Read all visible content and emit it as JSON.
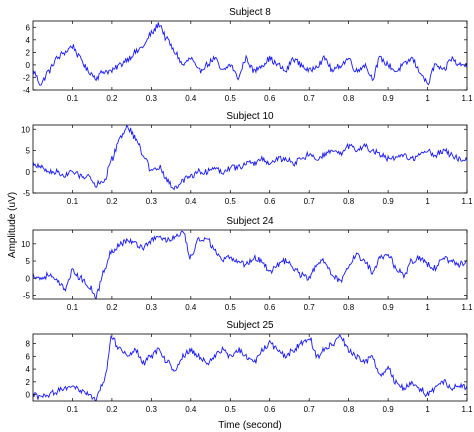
{
  "figure": {
    "ylabel": "Amplitude (uV)",
    "xlabel": "Time (second)"
  },
  "colors": {
    "trace": "#1a1aff",
    "axes": "#000000",
    "background": "#ffffff"
  },
  "chart_data": [
    {
      "type": "line",
      "title": "Subject 8",
      "xlim": [
        0,
        1.1
      ],
      "ylim": [
        -4,
        7
      ],
      "xticks": [
        0.1,
        0.2,
        0.3,
        0.4,
        0.5,
        0.6,
        0.7,
        0.8,
        0.9,
        1,
        1.1
      ],
      "xtick_labels": [
        "0.1",
        "0.2",
        "0.3",
        "0.4",
        "0.5",
        "0.6",
        "0.7",
        "0.8",
        "0.9",
        "1",
        "1.1"
      ],
      "yticks": [
        -4,
        -2,
        0,
        2,
        4,
        6
      ],
      "ytick_labels": [
        "-4",
        "-2",
        "0",
        "2",
        "4",
        "6"
      ],
      "grid": false,
      "series": [
        {
          "x": [
            0,
            0.02,
            0.04,
            0.06,
            0.08,
            0.1,
            0.12,
            0.14,
            0.16,
            0.18,
            0.2,
            0.22,
            0.24,
            0.26,
            0.28,
            0.3,
            0.32,
            0.34,
            0.36,
            0.38,
            0.4,
            0.42,
            0.44,
            0.46,
            0.48,
            0.5,
            0.52,
            0.54,
            0.56,
            0.58,
            0.6,
            0.62,
            0.64,
            0.66,
            0.68,
            0.7,
            0.72,
            0.74,
            0.76,
            0.78,
            0.8,
            0.82,
            0.84,
            0.86,
            0.88,
            0.9,
            0.92,
            0.94,
            0.96,
            0.98,
            1,
            1.02,
            1.04,
            1.06,
            1.08,
            1.1
          ],
          "values": [
            -1,
            -3,
            -1,
            1,
            2,
            3,
            1,
            -1,
            -2,
            -1,
            -1,
            0,
            1,
            2,
            3,
            5,
            6.5,
            4,
            2,
            0,
            1,
            -1,
            0,
            1,
            -1,
            0,
            -2,
            1,
            -1,
            0,
            1,
            0,
            -1,
            1,
            0,
            -1,
            0,
            1,
            -1,
            0,
            1,
            -1,
            0,
            -2,
            1,
            0,
            -1,
            0,
            1,
            -1,
            -3,
            0,
            -1,
            1,
            0,
            0
          ]
        }
      ]
    },
    {
      "type": "line",
      "title": "Subject 10",
      "xlim": [
        0,
        1.1
      ],
      "ylim": [
        -5,
        11
      ],
      "xticks": [
        0.1,
        0.2,
        0.3,
        0.4,
        0.5,
        0.6,
        0.7,
        0.8,
        0.9,
        1,
        1.1
      ],
      "xtick_labels": [
        "0.1",
        "0.2",
        "0.3",
        "0.4",
        "0.5",
        "0.6",
        "0.7",
        "0.8",
        "0.9",
        "1",
        "1.1"
      ],
      "yticks": [
        -5,
        0,
        5,
        10
      ],
      "ytick_labels": [
        "-5",
        "0",
        "5",
        "10"
      ],
      "grid": false,
      "series": [
        {
          "x": [
            0,
            0.02,
            0.04,
            0.06,
            0.08,
            0.1,
            0.12,
            0.14,
            0.16,
            0.18,
            0.2,
            0.22,
            0.24,
            0.26,
            0.28,
            0.3,
            0.32,
            0.34,
            0.36,
            0.38,
            0.4,
            0.42,
            0.44,
            0.46,
            0.48,
            0.5,
            0.52,
            0.54,
            0.56,
            0.58,
            0.6,
            0.62,
            0.64,
            0.66,
            0.68,
            0.7,
            0.72,
            0.74,
            0.76,
            0.78,
            0.8,
            0.82,
            0.84,
            0.86,
            0.88,
            0.9,
            0.92,
            0.94,
            0.96,
            0.98,
            1,
            1.02,
            1.04,
            1.06,
            1.08,
            1.1
          ],
          "values": [
            2,
            1,
            0,
            0,
            -1,
            0,
            -1,
            -1,
            -3,
            -2,
            3,
            8,
            10.5,
            8,
            4,
            0,
            1,
            -2,
            -4,
            -2,
            -1,
            0,
            0,
            1,
            0,
            1,
            1,
            2,
            2,
            3,
            2,
            3,
            3,
            2,
            3,
            4,
            3,
            4,
            5,
            4,
            6,
            5,
            6,
            5,
            4,
            3,
            3,
            4,
            3,
            4,
            5,
            4,
            5,
            4,
            3,
            3
          ]
        }
      ]
    },
    {
      "type": "line",
      "title": "Subject 24",
      "xlim": [
        0,
        1.1
      ],
      "ylim": [
        -6,
        14
      ],
      "xticks": [
        0.1,
        0.2,
        0.3,
        0.4,
        0.5,
        0.6,
        0.7,
        0.8,
        0.9,
        1,
        1.1
      ],
      "xtick_labels": [
        "0.1",
        "0.2",
        "0.3",
        "0.4",
        "0.5",
        "0.6",
        "0.7",
        "0.8",
        "0.9",
        "1",
        "1.1"
      ],
      "yticks": [
        -5,
        0,
        5,
        10
      ],
      "ytick_labels": [
        "-5",
        "0",
        "5",
        "10"
      ],
      "grid": false,
      "series": [
        {
          "x": [
            0,
            0.02,
            0.04,
            0.06,
            0.08,
            0.1,
            0.12,
            0.14,
            0.16,
            0.18,
            0.2,
            0.22,
            0.24,
            0.26,
            0.28,
            0.3,
            0.32,
            0.34,
            0.36,
            0.38,
            0.4,
            0.42,
            0.44,
            0.46,
            0.48,
            0.5,
            0.52,
            0.54,
            0.56,
            0.58,
            0.6,
            0.62,
            0.64,
            0.66,
            0.68,
            0.7,
            0.72,
            0.74,
            0.76,
            0.78,
            0.8,
            0.82,
            0.84,
            0.86,
            0.88,
            0.9,
            0.92,
            0.94,
            0.96,
            0.98,
            1,
            1.02,
            1.04,
            1.06,
            1.08,
            1.1
          ],
          "values": [
            1,
            0,
            1,
            -1,
            -3,
            2,
            0,
            -2,
            -5,
            2,
            8,
            10,
            11,
            10,
            9,
            11,
            12,
            11,
            12,
            13,
            6,
            11,
            12,
            8,
            5,
            6,
            5,
            4,
            6,
            5,
            2,
            4,
            5,
            3,
            1,
            0,
            4,
            5,
            1,
            -1,
            3,
            7,
            5,
            2,
            6,
            7,
            3,
            1,
            5,
            6,
            4,
            3,
            6,
            5,
            4,
            5
          ]
        }
      ]
    },
    {
      "type": "line",
      "title": "Subject 25",
      "xlim": [
        0,
        1.1
      ],
      "ylim": [
        -1,
        9.5
      ],
      "xticks": [
        0.1,
        0.2,
        0.3,
        0.4,
        0.5,
        0.6,
        0.7,
        0.8,
        0.9,
        1,
        1.1
      ],
      "xtick_labels": [
        "0.1",
        "0.2",
        "0.3",
        "0.4",
        "0.5",
        "0.6",
        "0.7",
        "0.8",
        "0.9",
        "1",
        "1.1"
      ],
      "yticks": [
        0,
        2,
        4,
        6,
        8
      ],
      "ytick_labels": [
        "0",
        "2",
        "4",
        "6",
        "8"
      ],
      "grid": false,
      "series": [
        {
          "x": [
            0,
            0.02,
            0.04,
            0.06,
            0.08,
            0.1,
            0.12,
            0.14,
            0.16,
            0.18,
            0.2,
            0.22,
            0.24,
            0.26,
            0.28,
            0.3,
            0.32,
            0.34,
            0.36,
            0.38,
            0.4,
            0.42,
            0.44,
            0.46,
            0.48,
            0.5,
            0.52,
            0.54,
            0.56,
            0.58,
            0.6,
            0.62,
            0.64,
            0.66,
            0.68,
            0.7,
            0.72,
            0.74,
            0.76,
            0.78,
            0.8,
            0.82,
            0.84,
            0.86,
            0.88,
            0.9,
            0.92,
            0.94,
            0.96,
            0.98,
            1,
            1.02,
            1.04,
            1.06,
            1.08,
            1.1
          ],
          "values": [
            0,
            -0.5,
            0,
            0.5,
            1,
            1.5,
            0.5,
            0,
            -0.5,
            2,
            9,
            7,
            6,
            7,
            5,
            6,
            7,
            5,
            4,
            6,
            7,
            6,
            5,
            6,
            7,
            6,
            7,
            6,
            5,
            7,
            8,
            7,
            6,
            7,
            8,
            9,
            6,
            7,
            8,
            9,
            7,
            6,
            5,
            6,
            3,
            4,
            2,
            1,
            2,
            1,
            0,
            1,
            2,
            1,
            1.5,
            1
          ]
        }
      ]
    }
  ]
}
